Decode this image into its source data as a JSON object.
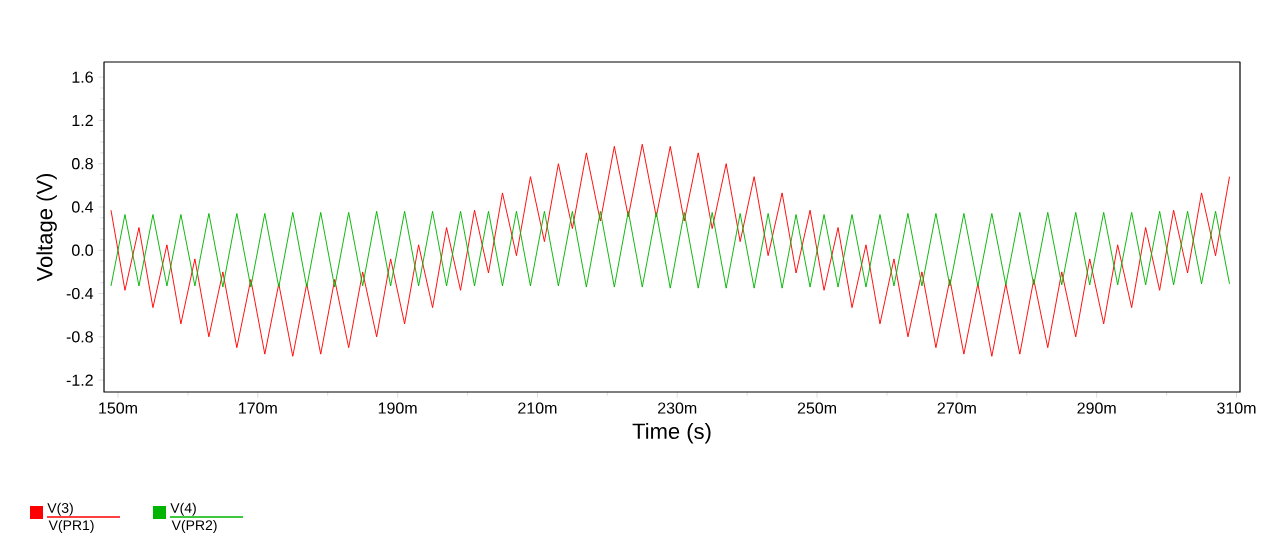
{
  "chart_data": {
    "type": "line",
    "xlabel": "Time (s)",
    "ylabel": "Voltage (V)",
    "xlim": [
      148,
      310.5
    ],
    "ylim": [
      -1.31,
      1.74
    ],
    "xticks": [
      {
        "value": 150,
        "label": "150m"
      },
      {
        "value": 170,
        "label": "170m"
      },
      {
        "value": 190,
        "label": "190m"
      },
      {
        "value": 210,
        "label": "210m"
      },
      {
        "value": 230,
        "label": "230m"
      },
      {
        "value": 250,
        "label": "250m"
      },
      {
        "value": 270,
        "label": "270m"
      },
      {
        "value": 290,
        "label": "290m"
      },
      {
        "value": 310,
        "label": "310m"
      }
    ],
    "yticks": [
      -1.2,
      -0.8,
      -0.4,
      {
        "value": 0,
        "label": "0.0"
      },
      0.4,
      0.8,
      1.2,
      1.6
    ],
    "x": [
      149,
      151,
      153,
      155,
      157,
      159,
      161,
      163,
      165,
      167,
      169,
      171,
      173,
      175,
      177,
      179,
      181,
      183,
      185,
      187,
      189,
      191,
      193,
      195,
      197,
      199,
      201,
      203,
      205,
      207,
      209,
      211,
      213,
      215,
      217,
      219,
      221,
      223,
      225,
      227,
      229,
      231,
      233,
      235,
      237,
      239,
      241,
      243,
      245,
      247,
      249,
      251,
      253,
      255,
      257,
      259,
      261,
      263,
      265,
      267,
      269,
      271,
      273,
      275,
      277,
      279,
      281,
      283,
      285,
      287,
      289,
      291,
      293,
      295,
      297,
      299,
      301,
      303,
      305,
      307,
      309
    ],
    "series": [
      {
        "name": "V(3)",
        "color": "#ff0000",
        "values": [
          0.37,
          -0.37,
          0.21,
          -0.53,
          0.05,
          -0.68,
          -0.08,
          -0.8,
          -0.2,
          -0.9,
          -0.27,
          -0.96,
          -0.31,
          -0.98,
          -0.31,
          -0.96,
          -0.27,
          -0.9,
          -0.2,
          -0.8,
          -0.08,
          -0.68,
          0.05,
          -0.53,
          0.21,
          -0.37,
          0.37,
          -0.21,
          0.53,
          -0.05,
          0.68,
          0.08,
          0.8,
          0.2,
          0.9,
          0.27,
          0.96,
          0.31,
          0.98,
          0.31,
          0.96,
          0.27,
          0.9,
          0.2,
          0.8,
          0.08,
          0.68,
          -0.05,
          0.53,
          -0.21,
          0.37,
          -0.37,
          0.21,
          -0.53,
          0.05,
          -0.68,
          -0.08,
          -0.8,
          -0.2,
          -0.9,
          -0.27,
          -0.96,
          -0.31,
          -0.98,
          -0.31,
          -0.96,
          -0.27,
          -0.9,
          -0.2,
          -0.8,
          -0.08,
          -0.68,
          0.05,
          -0.53,
          0.21,
          -0.37,
          0.37,
          -0.21,
          0.53,
          -0.05,
          0.68
        ]
      },
      {
        "name": "V(4)",
        "color": "#00b400",
        "values": [
          -0.33,
          0.33,
          -0.33,
          0.33,
          -0.33,
          0.33,
          -0.33,
          0.34,
          -0.34,
          0.34,
          -0.34,
          0.34,
          -0.34,
          0.35,
          -0.34,
          0.35,
          -0.34,
          0.35,
          -0.33,
          0.36,
          -0.33,
          0.36,
          -0.33,
          0.36,
          -0.33,
          0.36,
          -0.33,
          0.36,
          -0.33,
          0.36,
          -0.33,
          0.36,
          -0.33,
          0.36,
          -0.34,
          0.36,
          -0.34,
          0.36,
          -0.34,
          0.35,
          -0.35,
          0.35,
          -0.35,
          0.35,
          -0.35,
          0.34,
          -0.35,
          0.34,
          -0.35,
          0.33,
          -0.34,
          0.33,
          -0.34,
          0.33,
          -0.34,
          0.33,
          -0.33,
          0.34,
          -0.33,
          0.34,
          -0.33,
          0.34,
          -0.33,
          0.34,
          -0.32,
          0.35,
          -0.32,
          0.35,
          -0.32,
          0.35,
          -0.32,
          0.35,
          -0.32,
          0.35,
          -0.32,
          0.36,
          -0.32,
          0.36,
          -0.31,
          0.36,
          -0.31
        ]
      }
    ],
    "annotations": [
      "V(PR1)",
      "V(PR2)"
    ],
    "grid": false,
    "legend": "bottom left",
    "marker": "none",
    "line_style": "solid"
  }
}
